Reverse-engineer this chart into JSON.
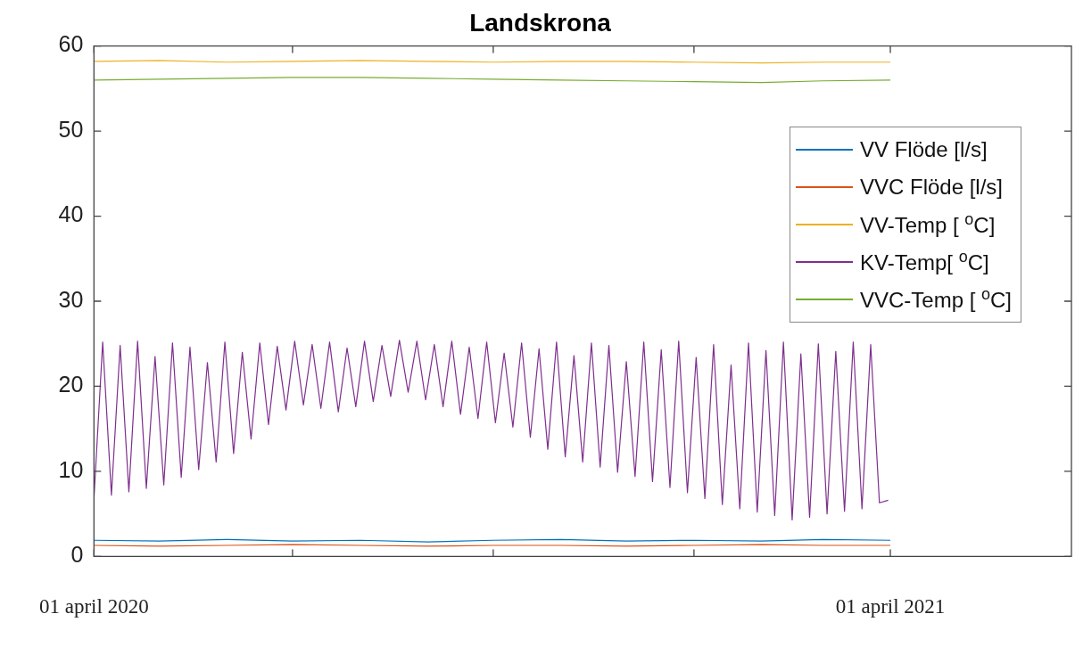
{
  "chart_data": {
    "type": "line",
    "title": "Landskrona",
    "x": [
      "2020-04-01",
      "2020-04-05",
      "2020-04-09",
      "2020-04-13",
      "2020-04-17",
      "2020-04-21",
      "2020-04-25",
      "2020-04-29",
      "2020-05-03",
      "2020-05-07",
      "2020-05-11",
      "2020-05-15",
      "2020-05-19",
      "2020-05-23",
      "2020-05-27",
      "2020-05-31",
      "2020-06-04",
      "2020-06-08",
      "2020-06-12",
      "2020-06-16",
      "2020-06-20",
      "2020-06-24",
      "2020-06-28",
      "2020-07-02",
      "2020-07-06",
      "2020-07-10",
      "2020-07-14",
      "2020-07-18",
      "2020-07-22",
      "2020-07-26",
      "2020-07-30",
      "2020-08-03",
      "2020-08-07",
      "2020-08-11",
      "2020-08-15",
      "2020-08-19",
      "2020-08-23",
      "2020-08-27",
      "2020-08-31",
      "2020-09-04",
      "2020-09-08",
      "2020-09-12",
      "2020-09-16",
      "2020-09-20",
      "2020-09-24",
      "2020-09-28",
      "2020-10-02",
      "2020-10-06",
      "2020-10-10",
      "2020-10-14",
      "2020-10-18",
      "2020-10-22",
      "2020-10-26",
      "2020-10-30",
      "2020-11-03",
      "2020-11-07",
      "2020-11-11",
      "2020-11-15",
      "2020-11-19",
      "2020-11-23",
      "2020-11-27",
      "2020-12-01",
      "2020-12-05",
      "2020-12-09",
      "2020-12-13",
      "2020-12-17",
      "2020-12-21",
      "2020-12-25",
      "2020-12-29",
      "2021-01-02",
      "2021-01-06",
      "2021-01-10",
      "2021-01-14",
      "2021-01-18",
      "2021-01-22",
      "2021-01-26",
      "2021-01-30",
      "2021-02-03",
      "2021-02-07",
      "2021-02-11",
      "2021-02-15",
      "2021-02-19",
      "2021-02-23",
      "2021-02-27",
      "2021-03-03",
      "2021-03-07",
      "2021-03-11",
      "2021-03-15",
      "2021-03-19",
      "2021-03-23",
      "2021-03-27",
      "2021-03-31"
    ],
    "series": [
      {
        "name": "VV Flöde [l/s]",
        "color": "#0072bd",
        "x": [
          "2020-04-01",
          "2020-05-01",
          "2020-06-01",
          "2020-07-01",
          "2020-08-01",
          "2020-09-01",
          "2020-10-01",
          "2020-11-01",
          "2020-12-01",
          "2021-01-01",
          "2021-02-01",
          "2021-03-01",
          "2021-04-01"
        ],
        "values": [
          1.9,
          1.8,
          2.0,
          1.8,
          1.9,
          1.7,
          1.9,
          2.0,
          1.8,
          1.9,
          1.8,
          2.0,
          1.9
        ]
      },
      {
        "name": "VVC Flöde [l/s]",
        "color": "#d95319",
        "x": [
          "2020-04-01",
          "2020-05-01",
          "2020-06-01",
          "2020-07-01",
          "2020-08-01",
          "2020-09-01",
          "2020-10-01",
          "2020-11-01",
          "2020-12-01",
          "2021-01-01",
          "2021-02-01",
          "2021-03-01",
          "2021-04-01"
        ],
        "values": [
          1.3,
          1.2,
          1.3,
          1.4,
          1.3,
          1.2,
          1.3,
          1.3,
          1.2,
          1.3,
          1.4,
          1.3,
          1.3
        ]
      },
      {
        "name": "VV-Temp [ $^{o}$C]",
        "color": "#edb120",
        "x": [
          "2020-04-01",
          "2020-05-01",
          "2020-06-01",
          "2020-07-01",
          "2020-08-01",
          "2020-09-01",
          "2020-10-01",
          "2020-11-01",
          "2020-12-01",
          "2021-01-01",
          "2021-02-01",
          "2021-03-01",
          "2021-04-01"
        ],
        "values": [
          58.2,
          58.3,
          58.1,
          58.2,
          58.3,
          58.2,
          58.1,
          58.2,
          58.2,
          58.1,
          58.0,
          58.1,
          58.1
        ]
      },
      {
        "name": "KV-Temp[ $^{o}$C]",
        "color": "#7e2f8e",
        "values": [
          6.8,
          25.2,
          7.2,
          24.8,
          7.6,
          25.3,
          8.0,
          23.5,
          8.4,
          25.1,
          9.3,
          24.6,
          10.2,
          22.8,
          11.1,
          25.2,
          12.1,
          24.0,
          13.8,
          25.1,
          15.5,
          24.7,
          17.2,
          25.3,
          17.8,
          24.9,
          17.4,
          25.2,
          17.0,
          24.5,
          17.6,
          25.3,
          18.2,
          24.8,
          18.8,
          25.4,
          19.3,
          25.3,
          18.4,
          24.9,
          17.6,
          25.3,
          16.7,
          24.6,
          16.2,
          25.2,
          15.7,
          23.9,
          15.2,
          25.1,
          14.0,
          24.4,
          12.6,
          25.2,
          11.7,
          23.6,
          11.1,
          25.1,
          10.5,
          24.8,
          9.9,
          22.9,
          9.4,
          25.2,
          8.8,
          24.3,
          8.1,
          25.3,
          7.5,
          23.4,
          6.8,
          24.9,
          6.1,
          22.5,
          5.6,
          25.1,
          5.2,
          24.2,
          4.8,
          25.2,
          4.3,
          23.8,
          4.6,
          25.0,
          5.0,
          24.1,
          5.3,
          25.2,
          5.6,
          24.9,
          6.3,
          6.6
        ]
      },
      {
        "name": "VVC-Temp [ $^{o}$C]",
        "color": "#77ac30",
        "x": [
          "2020-04-01",
          "2020-05-01",
          "2020-06-01",
          "2020-07-01",
          "2020-08-01",
          "2020-09-01",
          "2020-10-01",
          "2020-11-01",
          "2020-12-01",
          "2021-01-01",
          "2021-02-01",
          "2021-03-01",
          "2021-04-01"
        ],
        "values": [
          56.0,
          56.1,
          56.2,
          56.3,
          56.3,
          56.2,
          56.1,
          56.0,
          55.9,
          55.8,
          55.7,
          55.9,
          56.0
        ]
      }
    ],
    "xlim": [
      "2020-04-01",
      "2021-06-23"
    ],
    "xticks": [
      {
        "value": "2020-04-01",
        "label": "01 april 2020"
      },
      {
        "value": "2020-07-01",
        "label": null
      },
      {
        "value": "2020-10-01",
        "label": null
      },
      {
        "value": "2021-01-01",
        "label": null
      },
      {
        "value": "2021-04-01",
        "label": "01 april 2021"
      }
    ],
    "ylim": [
      0,
      60
    ],
    "yticks": [
      0,
      10,
      20,
      30,
      40,
      50,
      60
    ],
    "grid": false,
    "legend": "top right",
    "marker": "none",
    "line_style": "solid"
  }
}
